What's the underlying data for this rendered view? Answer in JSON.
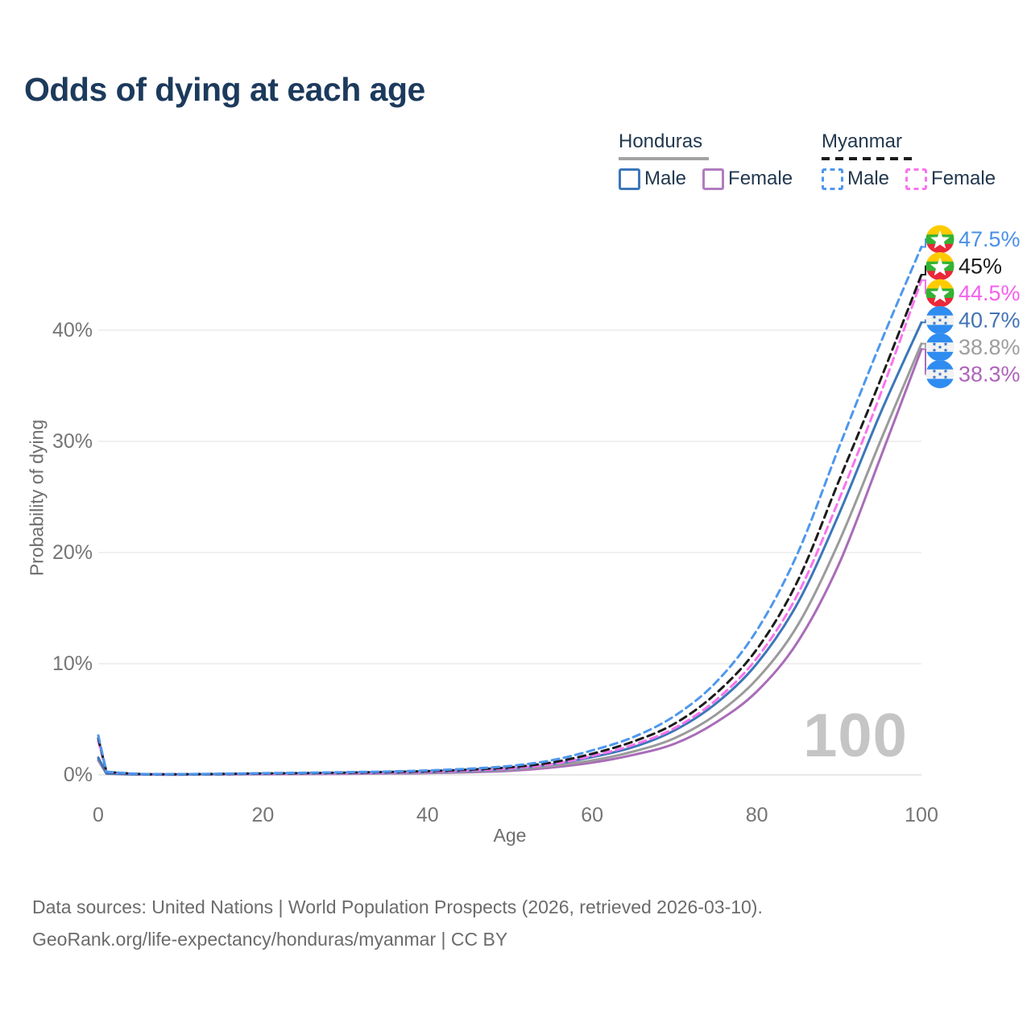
{
  "title": "Odds of dying at each age",
  "legend": {
    "groups": [
      {
        "country": "Honduras",
        "style": "solid",
        "underline_color": "#a3a3a3",
        "items": [
          {
            "label": "Male",
            "color": "#3c77b9"
          },
          {
            "label": "Female",
            "color": "#b27cc0"
          }
        ]
      },
      {
        "country": "Myanmar",
        "style": "dashed",
        "underline_color": "#1c1c1c",
        "items": [
          {
            "label": "Male",
            "color": "#4e97ee"
          },
          {
            "label": "Female",
            "color": "#f973ee"
          }
        ]
      }
    ]
  },
  "chart_data": {
    "type": "line",
    "title": "Odds of dying at each age",
    "xlabel": "Age",
    "ylabel": "Probability of dying",
    "watermark": "100",
    "x_ticks": [
      0,
      20,
      40,
      60,
      80,
      100
    ],
    "y_ticks": [
      "0%",
      "10%",
      "20%",
      "30%",
      "40%"
    ],
    "xlim": [
      0,
      100
    ],
    "ylim": [
      0,
      48
    ],
    "grid": true,
    "legend_position": "top-right",
    "ages": [
      0,
      1,
      5,
      10,
      15,
      20,
      25,
      30,
      35,
      40,
      45,
      50,
      55,
      60,
      65,
      70,
      75,
      80,
      85,
      90,
      95,
      100
    ],
    "series": [
      {
        "name": "Myanmar Male",
        "country": "myanmar",
        "sex": "male",
        "color": "#4e97ee",
        "dash": true,
        "end_label": "47.5%",
        "end_label_color": "#4a8fe8",
        "values": [
          3.55,
          0.28,
          0.09,
          0.07,
          0.1,
          0.15,
          0.19,
          0.24,
          0.3,
          0.4,
          0.55,
          0.8,
          1.3,
          2.2,
          3.4,
          5.3,
          8.3,
          13.0,
          20.0,
          29.5,
          38.8,
          47.5
        ]
      },
      {
        "name": "Myanmar Both sexes",
        "country": "myanmar",
        "sex": "both",
        "color": "#1c1c1c",
        "dash": true,
        "end_label": "45%",
        "end_label_color": "#1c1c1c",
        "values": [
          3.3,
          0.26,
          0.08,
          0.06,
          0.09,
          0.13,
          0.16,
          0.2,
          0.26,
          0.34,
          0.47,
          0.68,
          1.1,
          1.9,
          3.0,
          4.6,
          7.3,
          11.3,
          17.5,
          26.5,
          35.5,
          45.0
        ]
      },
      {
        "name": "Myanmar Female",
        "country": "myanmar",
        "sex": "female",
        "color": "#f973ee",
        "dash": true,
        "end_label": "44.5%",
        "end_label_color": "#f45fec",
        "values": [
          3.05,
          0.24,
          0.07,
          0.06,
          0.08,
          0.11,
          0.13,
          0.16,
          0.21,
          0.28,
          0.4,
          0.58,
          0.95,
          1.7,
          2.7,
          4.2,
          6.7,
          10.5,
          16.3,
          24.8,
          34.2,
          44.5
        ]
      },
      {
        "name": "Honduras Male",
        "country": "honduras",
        "sex": "male",
        "color": "#3c77b9",
        "dash": false,
        "end_label": "40.7%",
        "end_label_color": "#4273b4",
        "values": [
          1.55,
          0.12,
          0.04,
          0.03,
          0.06,
          0.1,
          0.13,
          0.16,
          0.2,
          0.26,
          0.36,
          0.55,
          0.95,
          1.6,
          2.5,
          4.0,
          6.4,
          10.0,
          15.5,
          23.5,
          32.5,
          40.7
        ]
      },
      {
        "name": "Honduras Both sexes",
        "country": "honduras",
        "sex": "both",
        "color": "#9b9b9b",
        "dash": false,
        "end_label": "38.8%",
        "end_label_color": "#9e9e9e",
        "values": [
          1.4,
          0.11,
          0.04,
          0.03,
          0.05,
          0.08,
          0.1,
          0.13,
          0.16,
          0.21,
          0.3,
          0.45,
          0.8,
          1.3,
          2.1,
          3.3,
          5.4,
          8.6,
          13.5,
          21.0,
          30.0,
          38.8
        ]
      },
      {
        "name": "Honduras Female",
        "country": "honduras",
        "sex": "female",
        "color": "#a96cb8",
        "dash": false,
        "end_label": "38.3%",
        "end_label_color": "#af64ba",
        "values": [
          1.3,
          0.1,
          0.03,
          0.03,
          0.04,
          0.06,
          0.07,
          0.09,
          0.12,
          0.16,
          0.24,
          0.36,
          0.65,
          1.1,
          1.8,
          2.8,
          4.7,
          7.5,
          12.0,
          19.0,
          28.5,
          38.3
        ]
      }
    ],
    "flag_colors": {
      "myanmar": {
        "top": "#fecb00",
        "middle": "#34b233",
        "bottom": "#ea2839",
        "star": "#ffffff"
      },
      "honduras": {
        "band": "#2f8cf0",
        "middle": "#f2f2f2",
        "star": "#2f6fc0"
      }
    }
  },
  "footer": {
    "line1": "Data sources: United Nations | World Population Prospects (2026, retrieved 2026-03-10).",
    "line2": "GeoRank.org/life-expectancy/honduras/myanmar | CC BY"
  }
}
